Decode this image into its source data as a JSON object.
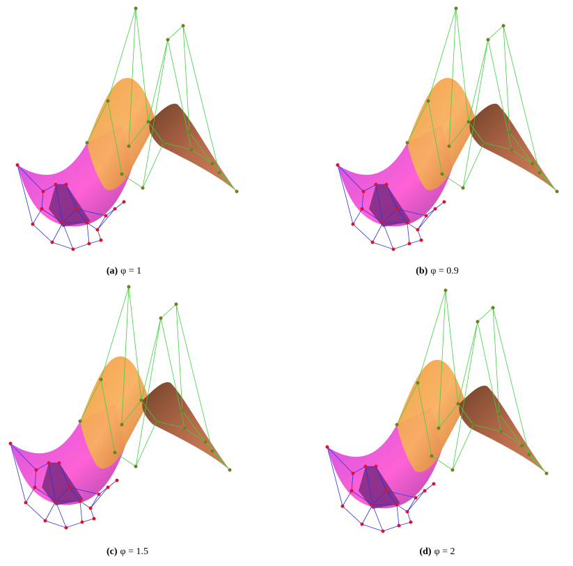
{
  "figures": [
    {
      "label": "(a)",
      "caption": "φ = 1"
    },
    {
      "label": "(b)",
      "caption": "φ = 0.9"
    },
    {
      "label": "(c)",
      "caption": "φ = 1.5"
    },
    {
      "label": "(d)",
      "caption": "φ = 2"
    }
  ]
}
